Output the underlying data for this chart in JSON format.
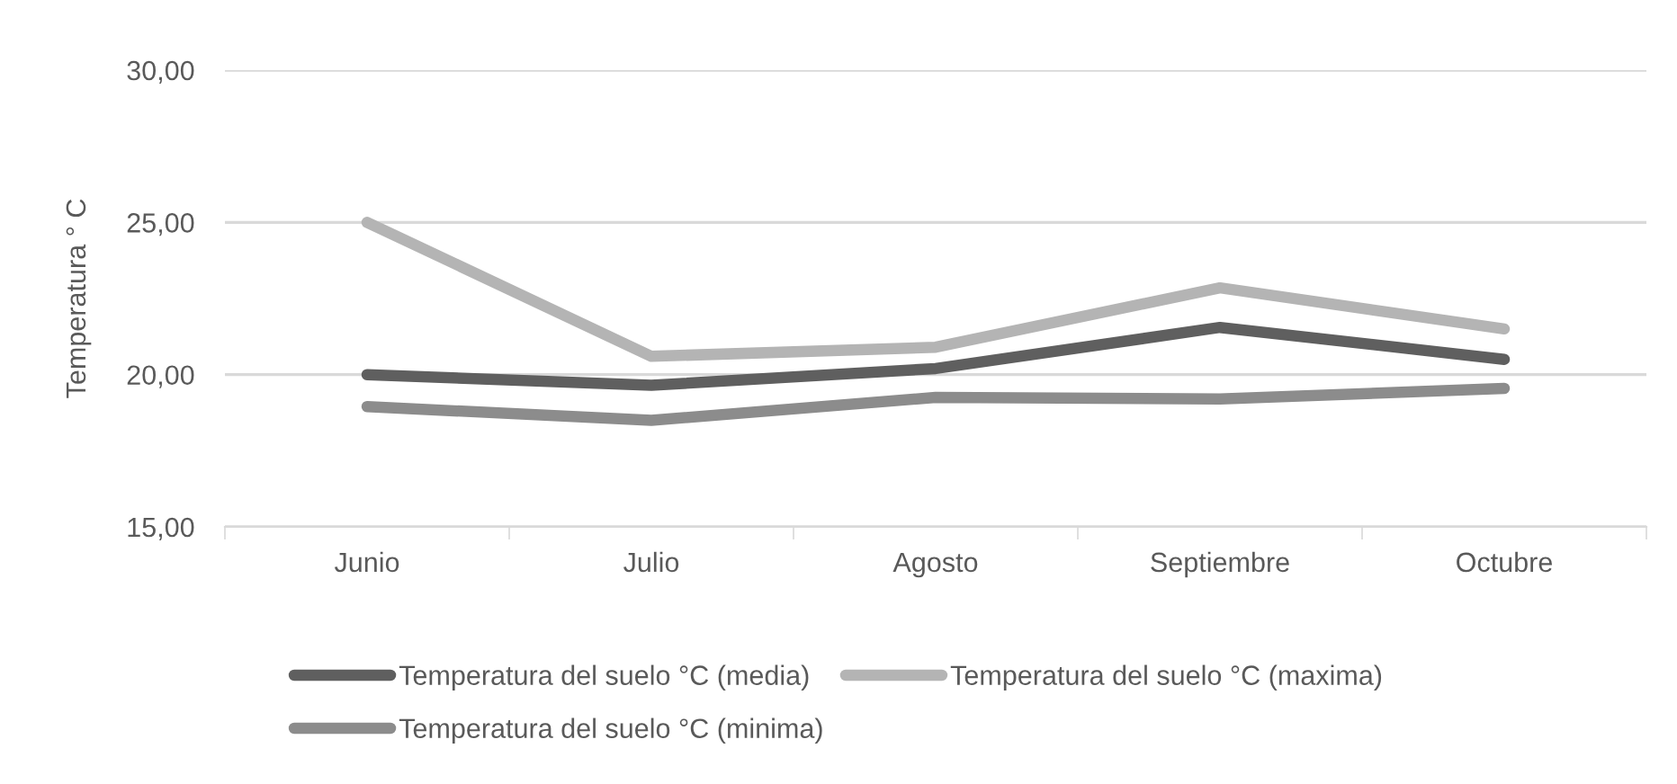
{
  "chart_data": {
    "type": "line",
    "ylabel": "Temperatura ° C",
    "categories": [
      "Junio",
      "Julio",
      "Agosto",
      "Septiembre",
      "Octubre"
    ],
    "series": [
      {
        "name": "Temperatura del suelo °C (media)",
        "color": "#5f5f5f",
        "values": [
          20.0,
          19.65,
          20.2,
          21.55,
          20.5
        ]
      },
      {
        "name": "Temperatura del suelo °C (maxima)",
        "color": "#b4b4b4",
        "values": [
          25.0,
          20.6,
          20.9,
          22.85,
          21.5
        ]
      },
      {
        "name": "Temperatura del suelo °C (minima)",
        "color": "#8c8c8c",
        "values": [
          18.95,
          18.5,
          19.25,
          19.2,
          19.55
        ]
      }
    ],
    "ylim": [
      15,
      30
    ],
    "yticks": [
      {
        "value": 15,
        "label": "15,00"
      },
      {
        "value": 20,
        "label": "20,00"
      },
      {
        "value": 25,
        "label": "25,00"
      },
      {
        "value": 30,
        "label": "30,00"
      }
    ],
    "grid": "y",
    "legend": "bottom",
    "marker": "none",
    "line_style": "solid"
  }
}
